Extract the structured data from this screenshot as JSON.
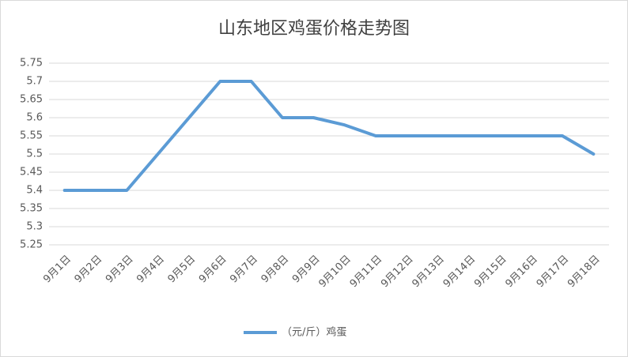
{
  "chart_data": {
    "type": "line",
    "title": "山东地区鸡蛋价格走势图",
    "categories": [
      "9月1日",
      "9月2日",
      "9月3日",
      "9月4日",
      "9月5日",
      "9月6日",
      "9月7日",
      "9月8日",
      "9月9日",
      "9月10日",
      "9月11日",
      "9月12日",
      "9月13日",
      "9月14日",
      "9月15日",
      "9月16日",
      "9月17日",
      "9月18日"
    ],
    "series": [
      {
        "name": "（元/斤）鸡蛋",
        "color": "#5b9bd5",
        "values": [
          5.4,
          5.4,
          5.4,
          5.5,
          5.6,
          5.7,
          5.7,
          5.6,
          5.6,
          5.58,
          5.55,
          5.55,
          5.55,
          5.55,
          5.55,
          5.55,
          5.55,
          5.5
        ]
      }
    ],
    "ylim": [
      5.25,
      5.75
    ],
    "yticks": [
      5.25,
      5.3,
      5.35,
      5.4,
      5.45,
      5.5,
      5.55,
      5.6,
      5.65,
      5.7,
      5.75
    ],
    "grid": true,
    "legend": "bottom"
  }
}
